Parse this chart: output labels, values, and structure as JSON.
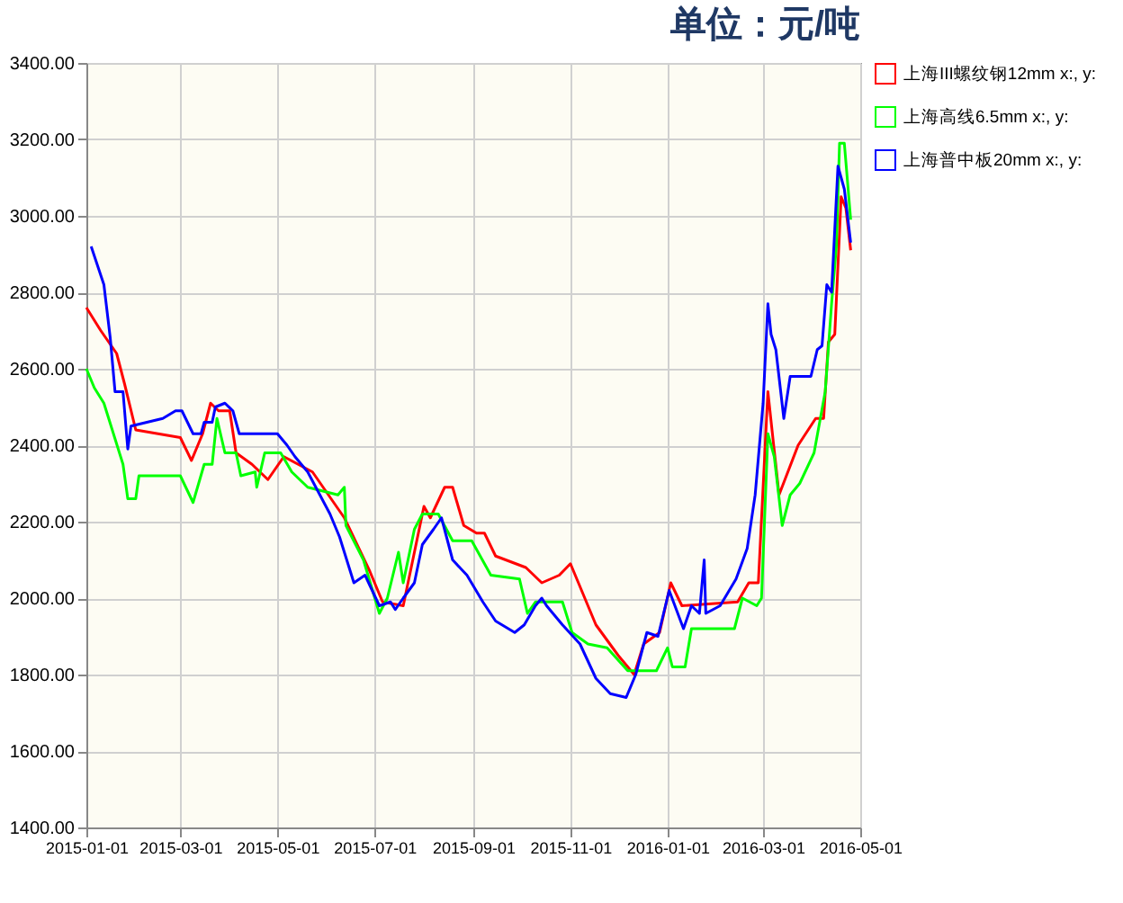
{
  "chart_data": {
    "type": "line",
    "title": "单位：元/吨",
    "legend": "right",
    "grid": true,
    "marker": "none",
    "line_style": "solid",
    "xlim": [
      "2015-01-01",
      "2016-05-01"
    ],
    "xticks": [
      "2015-01-01",
      "2015-03-01",
      "2015-05-01",
      "2015-07-01",
      "2015-09-01",
      "2015-11-01",
      "2016-01-01",
      "2016-03-01",
      "2016-05-01"
    ],
    "ylim": [
      1400,
      3400
    ],
    "yticks": [
      {
        "value": 1400,
        "label": "1400.00"
      },
      {
        "value": 1600,
        "label": "1600.00"
      },
      {
        "value": 1800,
        "label": "1800.00"
      },
      {
        "value": 2000,
        "label": "2000.00"
      },
      {
        "value": 2200,
        "label": "2200.00"
      },
      {
        "value": 2400,
        "label": "2400.00"
      },
      {
        "value": 2600,
        "label": "2600.00"
      },
      {
        "value": 2800,
        "label": "2800.00"
      },
      {
        "value": 3000,
        "label": "3000.00"
      },
      {
        "value": 3200,
        "label": "3200.00"
      },
      {
        "value": 3400,
        "label": "3400.00"
      }
    ],
    "series": [
      {
        "name": "上海III螺纹钢12mm x:, y:",
        "color": "#ff0000",
        "x": [
          "2015-01-01",
          "2015-01-10",
          "2015-01-20",
          "2015-01-25",
          "2015-02-01",
          "2015-03-01",
          "2015-03-08",
          "2015-03-15",
          "2015-03-20",
          "2015-03-25",
          "2015-04-01",
          "2015-04-05",
          "2015-04-15",
          "2015-04-25",
          "2015-05-05",
          "2015-05-23",
          "2015-06-12",
          "2015-06-28",
          "2015-07-06",
          "2015-07-19",
          "2015-07-24",
          "2015-08-01",
          "2015-08-05",
          "2015-08-14",
          "2015-08-19",
          "2015-08-26",
          "2015-09-03",
          "2015-09-08",
          "2015-09-15",
          "2015-10-04",
          "2015-10-14",
          "2015-10-25",
          "2015-11-01",
          "2015-11-17",
          "2015-12-01",
          "2015-12-11",
          "2015-12-17",
          "2015-12-27",
          "2016-01-03",
          "2016-01-10",
          "2016-02-14",
          "2016-02-21",
          "2016-02-27",
          "2016-03-04",
          "2016-03-11",
          "2016-03-23",
          "2016-04-03",
          "2016-04-08",
          "2016-04-11",
          "2016-04-15",
          "2016-04-19",
          "2016-04-22",
          "2016-04-25"
        ],
        "values": [
          2760,
          2700,
          2640,
          2560,
          2440,
          2420,
          2360,
          2430,
          2510,
          2490,
          2490,
          2380,
          2350,
          2310,
          2370,
          2330,
          2210,
          2070,
          1990,
          1980,
          2080,
          2240,
          2210,
          2290,
          2290,
          2190,
          2170,
          2170,
          2110,
          2080,
          2040,
          2060,
          2090,
          1930,
          1850,
          1800,
          1880,
          1910,
          2040,
          1980,
          1990,
          2040,
          2040,
          2540,
          2270,
          2400,
          2470,
          2470,
          2670,
          2690,
          3050,
          3020,
          2910
        ]
      },
      {
        "name": "上海高线6.5mm x:, y:",
        "color": "#00ff00",
        "x": [
          "2015-01-01",
          "2015-01-06",
          "2015-01-12",
          "2015-01-24",
          "2015-01-27",
          "2015-02-01",
          "2015-02-03",
          "2015-03-01",
          "2015-03-09",
          "2015-03-16",
          "2015-03-21",
          "2015-03-24",
          "2015-03-29",
          "2015-04-05",
          "2015-04-08",
          "2015-04-17",
          "2015-04-18",
          "2015-04-23",
          "2015-05-03",
          "2015-05-10",
          "2015-05-20",
          "2015-06-08",
          "2015-06-12",
          "2015-06-13",
          "2015-06-24",
          "2015-07-04",
          "2015-07-09",
          "2015-07-16",
          "2015-07-19",
          "2015-07-26",
          "2015-07-31",
          "2015-08-10",
          "2015-08-19",
          "2015-08-31",
          "2015-09-12",
          "2015-09-30",
          "2015-10-05",
          "2015-10-10",
          "2015-10-27",
          "2015-11-02",
          "2015-11-12",
          "2015-11-24",
          "2015-12-07",
          "2015-12-25",
          "2016-01-01",
          "2016-01-04",
          "2016-01-12",
          "2016-01-16",
          "2016-02-12",
          "2016-02-17",
          "2016-02-26",
          "2016-02-29",
          "2016-03-04",
          "2016-03-08",
          "2016-03-13",
          "2016-03-18",
          "2016-03-24",
          "2016-04-02",
          "2016-04-09",
          "2016-04-13",
          "2016-04-16",
          "2016-04-18",
          "2016-04-21",
          "2016-04-25"
        ],
        "values": [
          2600,
          2550,
          2510,
          2350,
          2260,
          2260,
          2320,
          2320,
          2250,
          2350,
          2350,
          2470,
          2380,
          2380,
          2320,
          2330,
          2290,
          2380,
          2380,
          2330,
          2290,
          2270,
          2290,
          2190,
          2100,
          1960,
          2000,
          2120,
          2040,
          2180,
          2220,
          2220,
          2150,
          2150,
          2060,
          2050,
          1960,
          1990,
          1990,
          1910,
          1880,
          1870,
          1810,
          1810,
          1870,
          1820,
          1820,
          1920,
          1920,
          2000,
          1980,
          2000,
          2430,
          2370,
          2190,
          2270,
          2300,
          2380,
          2540,
          2770,
          2920,
          3190,
          3190,
          2990
        ]
      },
      {
        "name": "上海普中板20mm x:, y:",
        "color": "#0000ff",
        "x": [
          "2015-01-04",
          "2015-01-12",
          "2015-01-16",
          "2015-01-19",
          "2015-01-24",
          "2015-01-27",
          "2015-01-29",
          "2015-02-08",
          "2015-02-18",
          "2015-02-26",
          "2015-03-02",
          "2015-03-09",
          "2015-03-14",
          "2015-03-16",
          "2015-03-21",
          "2015-03-23",
          "2015-03-29",
          "2015-04-03",
          "2015-04-07",
          "2015-05-01",
          "2015-05-07",
          "2015-05-12",
          "2015-05-20",
          "2015-06-03",
          "2015-06-09",
          "2015-06-18",
          "2015-06-25",
          "2015-07-04",
          "2015-07-11",
          "2015-07-14",
          "2015-07-19",
          "2015-07-26",
          "2015-07-31",
          "2015-08-07",
          "2015-08-12",
          "2015-08-19",
          "2015-08-28",
          "2015-09-07",
          "2015-09-15",
          "2015-09-27",
          "2015-10-03",
          "2015-10-10",
          "2015-10-14",
          "2015-10-17",
          "2015-10-27",
          "2015-11-07",
          "2015-11-17",
          "2015-11-26",
          "2015-12-06",
          "2015-12-12",
          "2015-12-19",
          "2015-12-26",
          "2016-01-02",
          "2016-01-11",
          "2016-01-16",
          "2016-01-21",
          "2016-01-24",
          "2016-01-25",
          "2016-02-03",
          "2016-02-13",
          "2016-02-20",
          "2016-02-25",
          "2016-03-01",
          "2016-03-04",
          "2016-03-06",
          "2016-03-09",
          "2016-03-14",
          "2016-03-18",
          "2016-03-31",
          "2016-04-04",
          "2016-04-07",
          "2016-04-10",
          "2016-04-13",
          "2016-04-17",
          "2016-04-21",
          "2016-04-25"
        ],
        "values": [
          2920,
          2820,
          2680,
          2540,
          2540,
          2390,
          2450,
          2460,
          2470,
          2490,
          2490,
          2430,
          2430,
          2460,
          2460,
          2500,
          2510,
          2490,
          2430,
          2430,
          2400,
          2370,
          2330,
          2220,
          2160,
          2040,
          2060,
          1980,
          1990,
          1970,
          2000,
          2040,
          2140,
          2180,
          2210,
          2100,
          2060,
          1990,
          1940,
          1910,
          1930,
          1980,
          2000,
          1980,
          1930,
          1880,
          1790,
          1750,
          1740,
          1800,
          1910,
          1900,
          2020,
          1920,
          1980,
          1960,
          2100,
          1960,
          1980,
          2050,
          2130,
          2270,
          2510,
          2770,
          2690,
          2650,
          2470,
          2580,
          2580,
          2650,
          2660,
          2820,
          2800,
          3130,
          3070,
          2930
        ]
      }
    ]
  }
}
